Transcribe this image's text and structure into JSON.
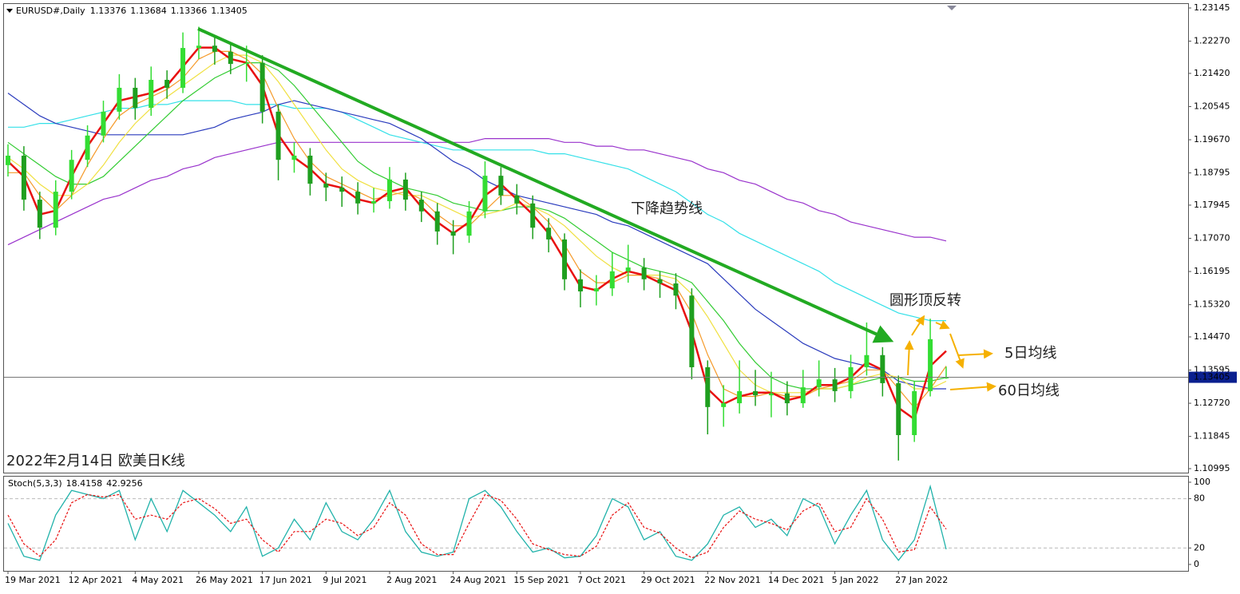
{
  "chart_data": {
    "type": "candlestick",
    "symbol": "EURUSD#,Daily",
    "categories": [
      "19 Mar 2021",
      null,
      null,
      null,
      "12 Apr 2021",
      null,
      null,
      null,
      "4 May 2021",
      null,
      null,
      null,
      "26 May 2021",
      null,
      null,
      null,
      "17 Jun 2021",
      null,
      null,
      null,
      "9 Jul 2021",
      null,
      null,
      null,
      "2 Aug 2021",
      null,
      null,
      null,
      "24 Aug 2021",
      null,
      null,
      null,
      "15 Sep 2021",
      null,
      null,
      null,
      "7 Oct 2021",
      null,
      null,
      null,
      "29 Oct 2021",
      null,
      null,
      null,
      "22 Nov 2021",
      null,
      null,
      null,
      "14 Dec 2021",
      null,
      null,
      null,
      "5 Jan 2022",
      null,
      null,
      null,
      "27 Jan 2022",
      null,
      null,
      null
    ],
    "candles": {
      "up_color": "#33dd33",
      "down_color": "#1f9f1f",
      "open": [
        1.19,
        1.1925,
        1.1809,
        1.1735,
        1.183,
        1.1914,
        1.1978,
        1.2041,
        1.2104,
        1.2051,
        1.2125,
        1.2104,
        1.2209,
        1.2215,
        1.2199,
        1.2167,
        1.217,
        1.2041,
        1.1914,
        1.1925,
        1.1851,
        1.1841,
        1.183,
        1.1799,
        1.1805,
        1.1862,
        1.1809,
        1.1778,
        1.1725,
        1.1714,
        1.1778,
        1.1872,
        1.182,
        1.1799,
        1.1735,
        1.1704,
        1.1599,
        1.1567,
        1.1575,
        1.162,
        1.163,
        1.1599,
        1.1588,
        1.1556,
        1.1367,
        1.1262,
        1.1272,
        1.1304,
        1.1293,
        1.1298,
        1.1272,
        1.1314,
        1.1335,
        1.1304,
        1.1367,
        1.1399,
        1.1325,
        1.1188,
        1.1304,
        1.13376
      ],
      "high": [
        1.1955,
        1.195,
        1.183,
        1.186,
        1.194,
        1.2005,
        1.207,
        1.214,
        1.213,
        1.216,
        1.215,
        1.225,
        1.2265,
        1.224,
        1.2225,
        1.2215,
        1.219,
        1.206,
        1.196,
        1.1945,
        1.188,
        1.187,
        1.1855,
        1.184,
        1.1895,
        1.188,
        1.183,
        1.18,
        1.1755,
        1.1805,
        1.191,
        1.1895,
        1.185,
        1.182,
        1.176,
        1.172,
        1.1625,
        1.161,
        1.167,
        1.169,
        1.1655,
        1.162,
        1.1615,
        1.1575,
        1.1385,
        1.132,
        1.1385,
        1.136,
        1.1355,
        1.133,
        1.136,
        1.1385,
        1.1365,
        1.14,
        1.1485,
        1.142,
        1.1345,
        1.133,
        1.1495,
        1.13684
      ],
      "low": [
        1.187,
        1.178,
        1.1705,
        1.1715,
        1.181,
        1.1895,
        1.196,
        1.202,
        1.202,
        1.203,
        1.2075,
        1.209,
        1.218,
        1.2165,
        1.214,
        1.212,
        1.201,
        1.186,
        1.188,
        1.182,
        1.1805,
        1.179,
        1.177,
        1.1775,
        1.1785,
        1.178,
        1.175,
        1.169,
        1.1665,
        1.1695,
        1.176,
        1.1795,
        1.177,
        1.1705,
        1.167,
        1.157,
        1.1525,
        1.153,
        1.1555,
        1.159,
        1.157,
        1.155,
        1.152,
        1.1335,
        1.119,
        1.121,
        1.1245,
        1.1265,
        1.1235,
        1.124,
        1.126,
        1.129,
        1.1275,
        1.1285,
        1.1345,
        1.129,
        1.1121,
        1.117,
        1.129,
        1.13366
      ],
      "close": [
        1.1925,
        1.1809,
        1.1735,
        1.183,
        1.1914,
        1.1978,
        1.2041,
        1.2104,
        1.2051,
        1.2125,
        1.2104,
        1.2209,
        1.2215,
        1.2199,
        1.2167,
        1.217,
        1.2041,
        1.1914,
        1.1925,
        1.1851,
        1.1841,
        1.183,
        1.1799,
        1.1805,
        1.1862,
        1.1809,
        1.1778,
        1.1725,
        1.1714,
        1.1778,
        1.1872,
        1.182,
        1.1799,
        1.1735,
        1.1704,
        1.1599,
        1.1567,
        1.1575,
        1.162,
        1.163,
        1.1599,
        1.1588,
        1.1556,
        1.1367,
        1.1262,
        1.1272,
        1.1304,
        1.1293,
        1.1298,
        1.1272,
        1.1314,
        1.1335,
        1.1304,
        1.1367,
        1.1399,
        1.1325,
        1.1188,
        1.1304,
        1.1441,
        1.13405
      ]
    },
    "moving_averages": [
      {
        "color": "#9932cc",
        "values": [
          1.169,
          1.171,
          1.173,
          1.175,
          1.177,
          1.179,
          1.181,
          1.182,
          1.184,
          1.186,
          1.187,
          1.189,
          1.19,
          1.192,
          1.193,
          1.194,
          1.195,
          1.196,
          1.196,
          1.196,
          1.196,
          1.196,
          1.196,
          1.196,
          1.196,
          1.196,
          1.196,
          1.196,
          1.196,
          1.196,
          1.197,
          1.197,
          1.197,
          1.197,
          1.197,
          1.196,
          1.196,
          1.195,
          1.195,
          1.194,
          1.194,
          1.193,
          1.192,
          1.191,
          1.189,
          1.188,
          1.186,
          1.185,
          1.183,
          1.181,
          1.18,
          1.178,
          1.177,
          1.175,
          1.174,
          1.173,
          1.172,
          1.171,
          1.171,
          1.17
        ]
      },
      {
        "color": "#33e0e8",
        "values": [
          1.2,
          1.2,
          1.201,
          1.201,
          1.202,
          1.203,
          1.204,
          1.205,
          1.205,
          1.206,
          1.206,
          1.207,
          1.207,
          1.207,
          1.207,
          1.206,
          1.206,
          1.206,
          1.205,
          1.205,
          1.205,
          1.204,
          1.202,
          1.2,
          1.198,
          1.197,
          1.196,
          1.195,
          1.194,
          1.194,
          1.194,
          1.194,
          1.194,
          1.194,
          1.193,
          1.193,
          1.192,
          1.191,
          1.19,
          1.189,
          1.187,
          1.185,
          1.183,
          1.18,
          1.177,
          1.175,
          1.172,
          1.17,
          1.168,
          1.166,
          1.164,
          1.162,
          1.159,
          1.157,
          1.155,
          1.153,
          1.151,
          1.15,
          1.149,
          1.149
        ]
      },
      {
        "color": "#2a3bbd",
        "values": [
          1.209,
          1.206,
          1.203,
          1.201,
          1.2,
          1.199,
          1.198,
          1.198,
          1.198,
          1.198,
          1.198,
          1.198,
          1.199,
          1.2,
          1.202,
          1.203,
          1.204,
          1.206,
          1.207,
          1.206,
          1.205,
          1.204,
          1.203,
          1.202,
          1.201,
          1.199,
          1.197,
          1.194,
          1.191,
          1.189,
          1.186,
          1.184,
          1.182,
          1.181,
          1.18,
          1.179,
          1.178,
          1.177,
          1.175,
          1.174,
          1.172,
          1.17,
          1.168,
          1.166,
          1.164,
          1.16,
          1.156,
          1.152,
          1.149,
          1.146,
          1.143,
          1.141,
          1.139,
          1.138,
          1.137,
          1.136,
          1.133,
          1.132,
          1.131,
          1.131
        ]
      },
      {
        "color": "#33cc33",
        "values": [
          1.196,
          1.193,
          1.19,
          1.187,
          1.185,
          1.185,
          1.187,
          1.191,
          1.195,
          1.199,
          1.203,
          1.207,
          1.21,
          1.213,
          1.215,
          1.217,
          1.217,
          1.215,
          1.211,
          1.206,
          1.201,
          1.196,
          1.191,
          1.188,
          1.186,
          1.184,
          1.183,
          1.182,
          1.18,
          1.179,
          1.178,
          1.178,
          1.179,
          1.179,
          1.178,
          1.176,
          1.173,
          1.17,
          1.167,
          1.165,
          1.163,
          1.162,
          1.161,
          1.159,
          1.154,
          1.149,
          1.143,
          1.138,
          1.134,
          1.132,
          1.131,
          1.131,
          1.131,
          1.132,
          1.133,
          1.134,
          1.134,
          1.133,
          1.133,
          1.134
        ]
      },
      {
        "color": "#f0e040",
        "values": [
          1.192,
          1.189,
          1.185,
          1.182,
          1.182,
          1.185,
          1.19,
          1.196,
          1.201,
          1.205,
          1.208,
          1.211,
          1.214,
          1.217,
          1.219,
          1.219,
          1.217,
          1.212,
          1.206,
          1.2,
          1.194,
          1.189,
          1.186,
          1.184,
          1.183,
          1.182,
          1.182,
          1.18,
          1.178,
          1.176,
          1.177,
          1.178,
          1.18,
          1.179,
          1.177,
          1.174,
          1.17,
          1.166,
          1.163,
          1.161,
          1.161,
          1.161,
          1.16,
          1.156,
          1.15,
          1.143,
          1.136,
          1.132,
          1.13,
          1.13,
          1.13,
          1.131,
          1.131,
          1.132,
          1.134,
          1.135,
          1.134,
          1.131,
          1.131,
          1.133
        ]
      },
      {
        "color": "#f59a2a",
        "values": [
          1.188,
          1.188,
          1.182,
          1.178,
          1.182,
          1.19,
          1.197,
          1.203,
          1.206,
          1.208,
          1.21,
          1.213,
          1.218,
          1.22,
          1.22,
          1.218,
          1.214,
          1.205,
          1.197,
          1.191,
          1.187,
          1.185,
          1.183,
          1.181,
          1.182,
          1.183,
          1.181,
          1.177,
          1.174,
          1.174,
          1.178,
          1.182,
          1.182,
          1.179,
          1.175,
          1.169,
          1.162,
          1.159,
          1.159,
          1.161,
          1.161,
          1.16,
          1.158,
          1.151,
          1.14,
          1.131,
          1.129,
          1.129,
          1.13,
          1.129,
          1.129,
          1.131,
          1.132,
          1.133,
          1.136,
          1.136,
          1.131,
          1.126,
          1.131,
          1.137
        ]
      },
      {
        "color": "#e81010",
        "values": [
          1.191,
          1.187,
          1.177,
          1.178,
          1.187,
          1.195,
          1.201,
          1.207,
          1.208,
          1.209,
          1.211,
          1.216,
          1.221,
          1.221,
          1.218,
          1.217,
          1.211,
          1.198,
          1.192,
          1.189,
          1.185,
          1.184,
          1.181,
          1.18,
          1.183,
          1.184,
          1.179,
          1.175,
          1.172,
          1.175,
          1.182,
          1.185,
          1.181,
          1.177,
          1.172,
          1.165,
          1.158,
          1.157,
          1.16,
          1.162,
          1.161,
          1.159,
          1.157,
          1.146,
          1.131,
          1.127,
          1.129,
          1.13,
          1.13,
          1.128,
          1.129,
          1.132,
          1.132,
          1.134,
          1.138,
          1.136,
          1.126,
          1.123,
          1.137,
          1.141
        ]
      }
    ],
    "ylim": [
      1.1089,
      1.2325
    ],
    "yticks": [
      1.23145,
      {
        "value": 1.2227,
        "label": "1.22270"
      },
      {
        "value": 1.2142,
        "label": "1.21420"
      },
      1.20545,
      {
        "value": 1.1967,
        "label": "1.19670"
      },
      1.18795,
      1.17945,
      {
        "value": 1.1707,
        "label": "1.17070"
      },
      1.16195,
      {
        "value": 1.1532,
        "label": "1.15320"
      },
      {
        "value": 1.1447,
        "label": "1.14470"
      },
      1.13595,
      {
        "value": 1.1272,
        "label": "1.12720"
      },
      1.11845,
      1.10995
    ],
    "stochastic": {
      "label": "Stoch(5,3,3)",
      "ylim": [
        -7.8,
        106.8
      ],
      "yticks": [
        100,
        80,
        20,
        0
      ],
      "main": {
        "color": "#20b2aa",
        "values": [
          50,
          10,
          5,
          60,
          90,
          85,
          80,
          90,
          30,
          80,
          40,
          90,
          75,
          60,
          40,
          70,
          10,
          20,
          55,
          30,
          75,
          40,
          30,
          55,
          90,
          40,
          15,
          10,
          15,
          80,
          90,
          70,
          40,
          15,
          20,
          8,
          10,
          35,
          80,
          70,
          30,
          40,
          10,
          5,
          25,
          60,
          70,
          45,
          55,
          35,
          80,
          70,
          25,
          60,
          90,
          30,
          5,
          30,
          95,
          18.4158
        ]
      },
      "signal": {
        "color": "#e81010",
        "values": [
          60,
          25,
          10,
          30,
          75,
          85,
          82,
          85,
          55,
          60,
          55,
          75,
          80,
          68,
          50,
          55,
          30,
          15,
          40,
          40,
          55,
          50,
          35,
          45,
          75,
          60,
          25,
          12,
          12,
          50,
          85,
          78,
          55,
          25,
          18,
          12,
          10,
          22,
          60,
          75,
          45,
          38,
          20,
          8,
          15,
          45,
          65,
          55,
          50,
          42,
          65,
          75,
          40,
          45,
          80,
          55,
          15,
          18,
          70,
          42.9256
        ]
      }
    },
    "annotations": {
      "trend": "下降趋势线",
      "pattern": "圆形顶反转",
      "ma5": "5日均线",
      "ma60": "60日均线",
      "caption": "2022年2月14日 欧美日K线"
    }
  }
}
